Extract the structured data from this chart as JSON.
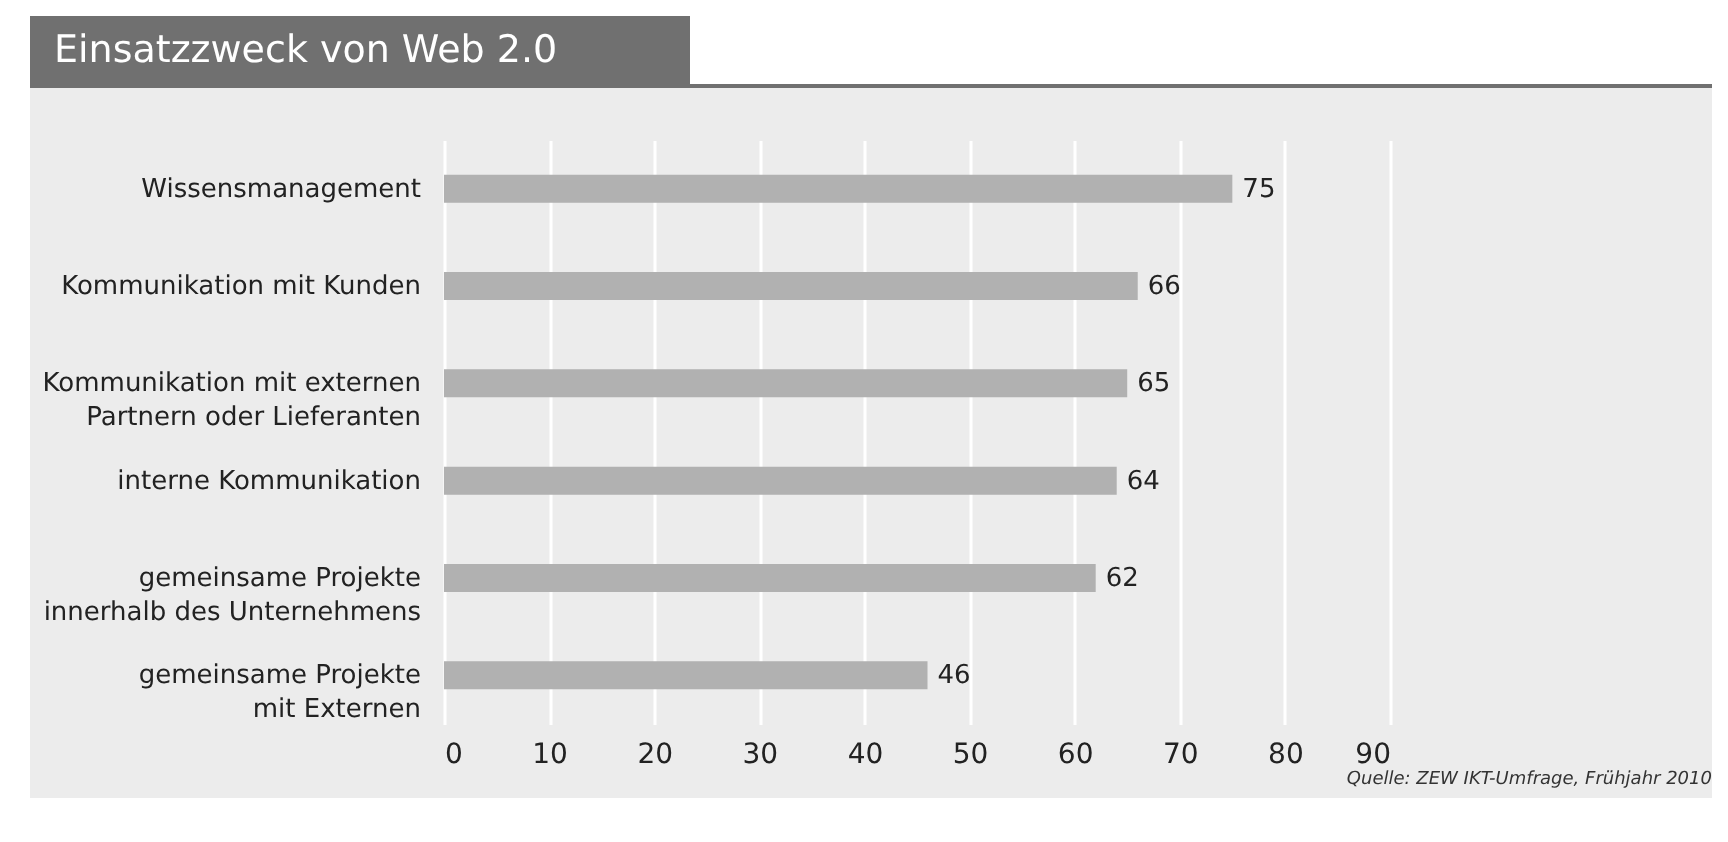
{
  "chart_data": {
    "type": "bar",
    "orientation": "horizontal",
    "title": "Einsatzzweck von Web 2.0",
    "categories": [
      "Wissensmanagement",
      "Kommunikation mit Kunden",
      "Kommunikation mit externen\nPartnern oder Lieferanten",
      "interne Kommunikation",
      "gemeinsame Projekte\ninnerhalb des Unternehmens",
      "gemeinsame Projekte\nmit Externen"
    ],
    "values": [
      75,
      66,
      65,
      64,
      62,
      46
    ],
    "color": "#b1b1b1",
    "data_labels": true,
    "xlim": [
      0,
      90
    ],
    "xticks": [
      0,
      10,
      20,
      30,
      40,
      50,
      60,
      70,
      80,
      90
    ],
    "grid": "x",
    "annotations": [
      "Quelle: ZEW IKT-Umfrage, Frühjahr 2010"
    ]
  }
}
